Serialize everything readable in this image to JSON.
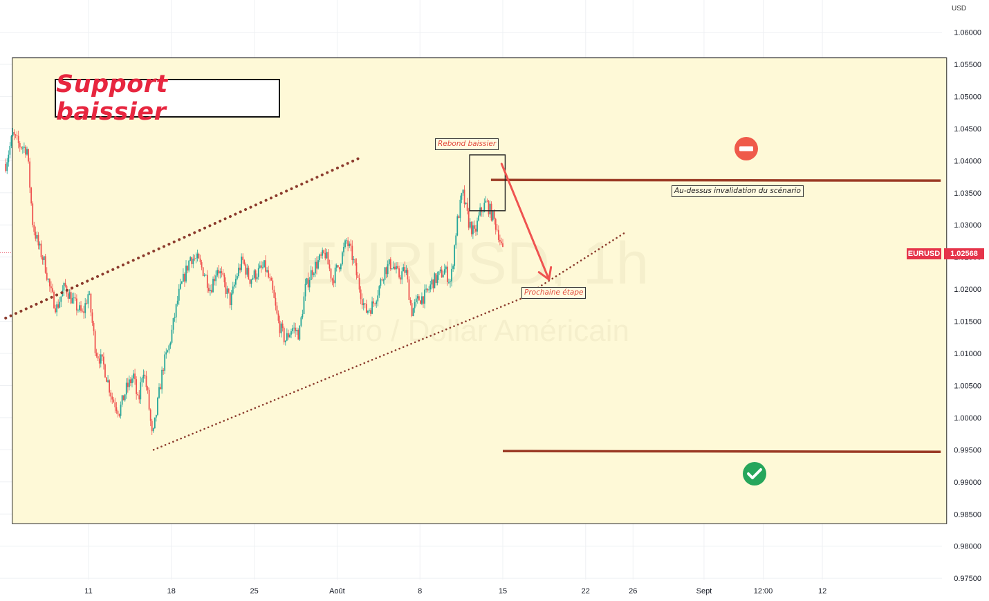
{
  "symbol_label": "EURUSD",
  "price_label": "1.02568",
  "axis_unit": "USD",
  "watermark": {
    "symbol": "EURUSD, 1h",
    "name": "Euro / Dollar Américain"
  },
  "annotations": {
    "title": "Support baissier",
    "rebound": "Rebond baissier",
    "invalidation": "Au-dessus invalidation du scénario",
    "next_step": "Prochaine étape"
  },
  "colors": {
    "up_candle": "#26a69a",
    "down_candle": "#ef5350",
    "level_line": "#9b3b25",
    "channel": "#8b3a2c",
    "arrow": "#ef5350",
    "highlight_bg": "#fef9d7",
    "price_tag": "#e5344a",
    "no_entry_icon": "#ef5a4a",
    "check_icon": "#26a65b"
  },
  "icons": {
    "no_entry": "minus-circle-icon",
    "check": "check-circle-icon"
  },
  "chart_data": {
    "type": "candlestick",
    "symbol": "EURUSD",
    "current_price": 1.02568,
    "ylim": [
      0.975,
      1.064
    ],
    "yticks": [
      "1.06000",
      "1.05500",
      "1.05000",
      "1.04500",
      "1.04000",
      "1.03500",
      "1.03000",
      "1.02500",
      "1.02000",
      "1.01500",
      "1.01000",
      "1.00500",
      "1.00000",
      "0.99500",
      "0.99000",
      "0.98500",
      "0.98000",
      "0.97500"
    ],
    "xticks": [
      {
        "label": "11",
        "t": 11
      },
      {
        "label": "18",
        "t": 18
      },
      {
        "label": "25",
        "t": 25
      },
      {
        "label": "Août",
        "t": 32
      },
      {
        "label": "8",
        "t": 39
      },
      {
        "label": "15",
        "t": 46
      },
      {
        "label": "22",
        "t": 53
      },
      {
        "label": "26",
        "t": 57
      },
      {
        "label": "Sept",
        "t": 63
      },
      {
        "label": "12:00",
        "t": 68
      },
      {
        "label": "12",
        "t": 73
      }
    ],
    "xlim": [
      4.0,
      84.0
    ],
    "price_path": [
      [
        4.0,
        1.0395
      ],
      [
        4.6,
        1.044
      ],
      [
        5.1,
        1.0425
      ],
      [
        5.8,
        1.0418
      ],
      [
        6.3,
        1.03
      ],
      [
        6.8,
        1.0265
      ],
      [
        7.3,
        1.024
      ],
      [
        7.8,
        1.0195
      ],
      [
        8.3,
        1.017
      ],
      [
        9.0,
        1.0205
      ],
      [
        9.7,
        1.018
      ],
      [
        10.5,
        1.016
      ],
      [
        11.0,
        1.0195
      ],
      [
        11.6,
        1.0105
      ],
      [
        12.3,
        1.008
      ],
      [
        13.0,
        1.003
      ],
      [
        13.6,
        1.001
      ],
      [
        14.2,
        1.0045
      ],
      [
        14.8,
        1.0065
      ],
      [
        15.2,
        1.002
      ],
      [
        15.6,
        1.008
      ],
      [
        16.0,
        1.0035
      ],
      [
        16.4,
        0.9965
      ],
      [
        16.9,
        1.003
      ],
      [
        17.3,
        1.008
      ],
      [
        17.8,
        1.011
      ],
      [
        18.2,
        1.015
      ],
      [
        18.6,
        1.019
      ],
      [
        19.1,
        1.022
      ],
      [
        19.6,
        1.025
      ],
      [
        20.2,
        1.0245
      ],
      [
        20.8,
        1.0225
      ],
      [
        21.3,
        1.02
      ],
      [
        21.9,
        1.0235
      ],
      [
        22.4,
        1.021
      ],
      [
        23.0,
        1.018
      ],
      [
        23.5,
        1.022
      ],
      [
        24.0,
        1.0245
      ],
      [
        24.6,
        1.0215
      ],
      [
        25.2,
        1.0225
      ],
      [
        25.9,
        1.0235
      ],
      [
        26.5,
        1.02
      ],
      [
        27.0,
        1.015
      ],
      [
        27.6,
        1.012
      ],
      [
        28.2,
        1.014
      ],
      [
        28.8,
        1.013
      ],
      [
        29.3,
        1.02
      ],
      [
        29.9,
        1.023
      ],
      [
        30.5,
        1.0245
      ],
      [
        31.0,
        1.0255
      ],
      [
        31.6,
        1.0215
      ],
      [
        32.2,
        1.024
      ],
      [
        32.8,
        1.0275
      ],
      [
        33.3,
        1.025
      ],
      [
        33.8,
        1.021
      ],
      [
        34.4,
        1.0165
      ],
      [
        35.0,
        1.0175
      ],
      [
        35.5,
        1.02
      ],
      [
        36.0,
        1.023
      ],
      [
        36.6,
        1.024
      ],
      [
        37.2,
        1.022
      ],
      [
        37.8,
        1.023
      ],
      [
        38.3,
        1.0165
      ],
      [
        38.9,
        1.0185
      ],
      [
        39.5,
        1.019
      ],
      [
        40.0,
        1.021
      ],
      [
        40.6,
        1.022
      ],
      [
        41.1,
        1.023
      ],
      [
        41.6,
        1.021
      ],
      [
        42.1,
        1.03
      ],
      [
        42.6,
        1.035
      ],
      [
        43.1,
        1.0305
      ],
      [
        43.6,
        1.0285
      ],
      [
        44.1,
        1.032
      ],
      [
        44.6,
        1.0335
      ],
      [
        45.1,
        1.0315
      ],
      [
        45.6,
        1.029
      ],
      [
        46.0,
        1.0257
      ]
    ],
    "lines": {
      "channel_upper": [
        [
          4.0,
          1.0155
        ],
        [
          34.0,
          1.0405
        ]
      ],
      "channel_lower": [
        [
          16.5,
          0.995
        ],
        [
          47.5,
          1.0185
        ],
        [
          56.5,
          1.029
        ]
      ],
      "resistance": {
        "from_t": 45.0,
        "to_t": 83.0,
        "price": 1.037
      },
      "support": {
        "from_t": 46.0,
        "to_t": 83.0,
        "price": 0.9948
      },
      "arrow": [
        [
          45.9,
          1.0395
        ],
        [
          49.9,
          1.0215
        ]
      ],
      "rebound_box": {
        "t1": 43.2,
        "t2": 46.2,
        "p1": 1.0409,
        "p2": 1.0322
      }
    },
    "zone": {
      "t1": 4.0,
      "t2": 83.5,
      "p1": 1.056,
      "p2": 0.9835
    }
  }
}
